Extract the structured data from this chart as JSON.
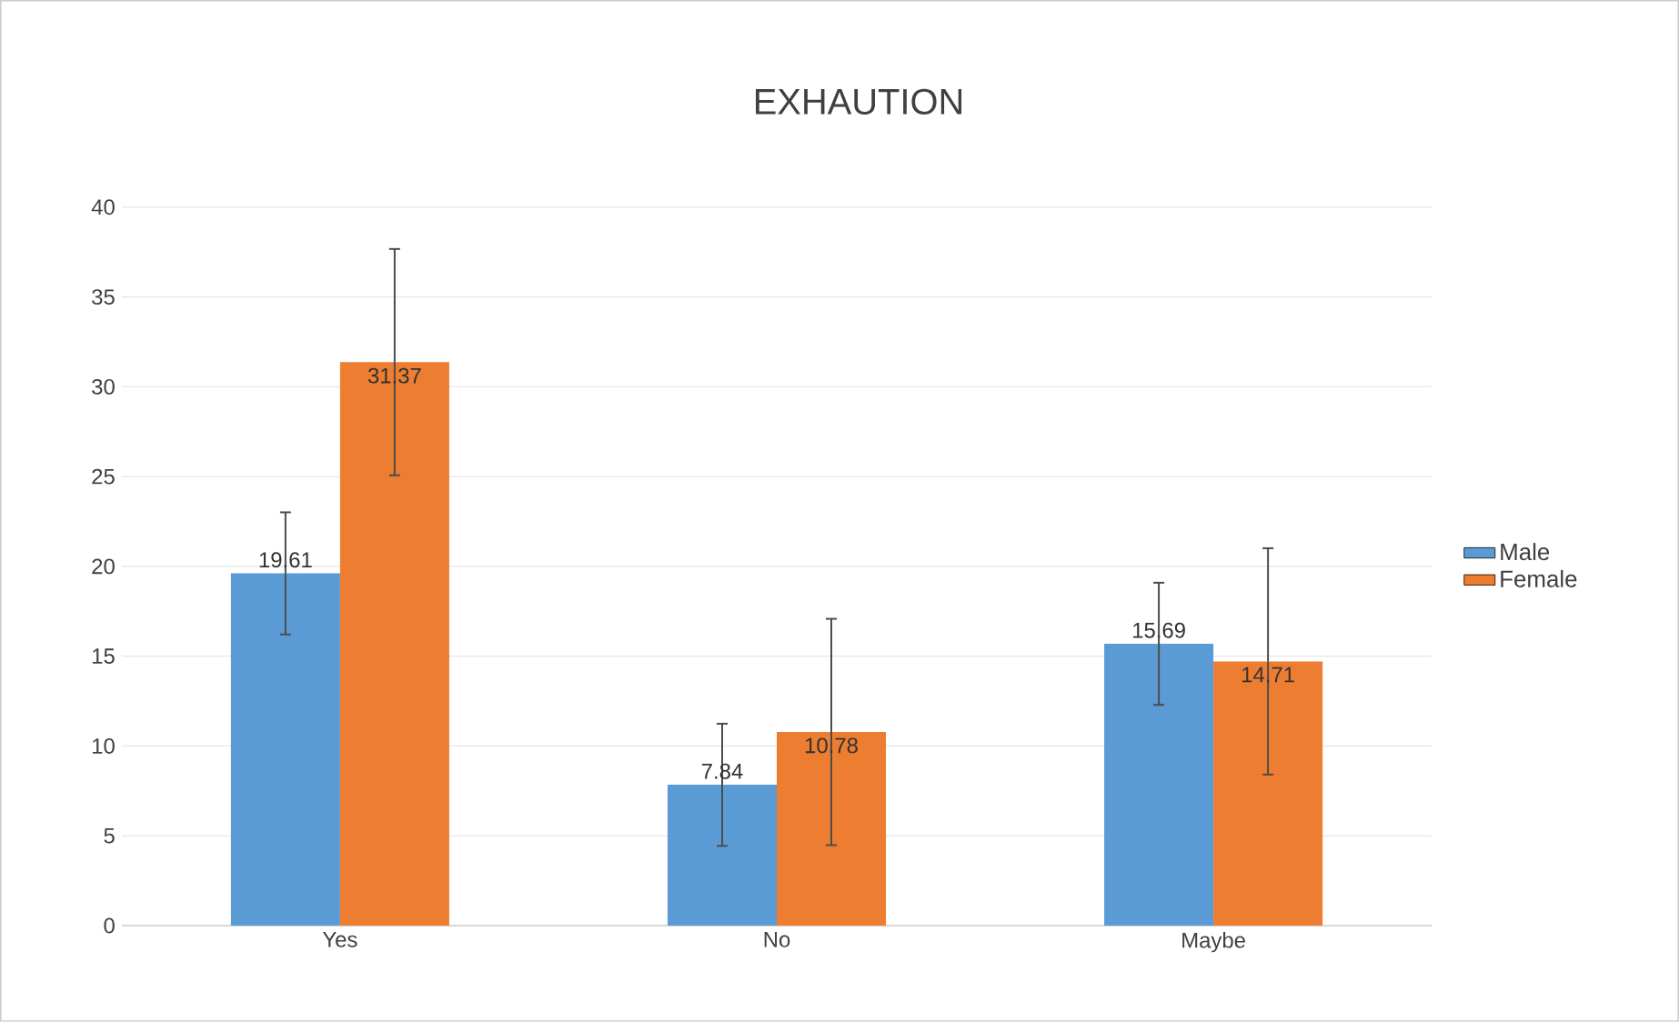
{
  "chart_data": {
    "type": "bar",
    "title": "EXHAUTION",
    "categories": [
      "Yes",
      "No",
      "Maybe"
    ],
    "series": [
      {
        "name": "Male",
        "color": "#5b9bd5",
        "values": [
          19.61,
          7.84,
          15.69
        ],
        "errors": [
          3.4,
          3.4,
          3.4
        ]
      },
      {
        "name": "Female",
        "color": "#ed7d31",
        "values": [
          31.37,
          10.78,
          14.71
        ],
        "errors": [
          6.3,
          6.3,
          6.3
        ]
      }
    ],
    "ylim": [
      0,
      40
    ],
    "yticks": [
      0,
      5,
      10,
      15,
      20,
      25,
      30,
      35,
      40
    ],
    "grid": "y",
    "legend": "right",
    "data_labels": true
  }
}
